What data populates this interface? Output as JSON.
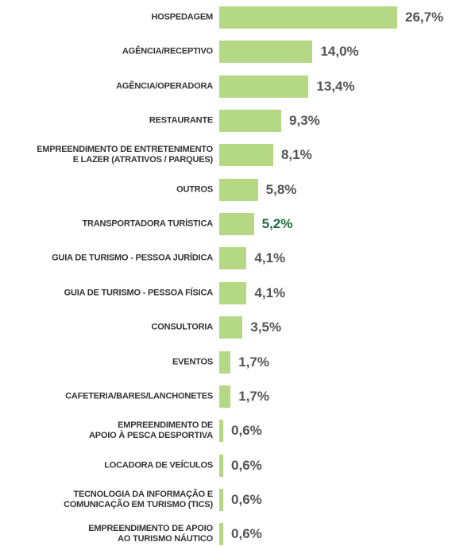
{
  "chart_data": {
    "type": "bar",
    "orientation": "horizontal",
    "categories": [
      "HOSPEDAGEM",
      "AGÊNCIA/RECEPTIVO",
      "AGÊNCIA/OPERADORA",
      "RESTAURANTE",
      "EMPREENDIMENTO DE ENTRETENIMENTO\nE LAZER (ATRATIVOS / PARQUES)",
      "OUTROS",
      "TRANSPORTADORA TURÍSTICA",
      "GUIA DE TURISMO - PESSOA JURÍDICA",
      "GUIA DE TURISMO - PESSOA FÍSICA",
      "CONSULTORIA",
      "EVENTOS",
      "CAFETERIA/BARES/LANCHONETES",
      "EMPREENDIMENTO DE\nAPOIO À PESCA DESPORTIVA",
      "LOCADORA DE VEÍCULOS",
      "TECNOLOGIA DA INFORMAÇÃO E\nCOMUNICAÇÃO EM TURISMO (TICS)",
      "EMPREENDIMENTO DE APOIO\nAO TURISMO NÁUTICO"
    ],
    "values": [
      26.7,
      14.0,
      13.4,
      9.3,
      8.1,
      5.8,
      5.2,
      4.1,
      4.1,
      3.5,
      1.7,
      1.7,
      0.6,
      0.6,
      0.6,
      0.6
    ],
    "value_labels": [
      "26,7%",
      "14,0%",
      "13,4%",
      "9,3%",
      "8,1%",
      "5,8%",
      "5,2%",
      "4,1%",
      "4,1%",
      "3,5%",
      "1,7%",
      "1,7%",
      "0,6%",
      "0,6%",
      "0,6%",
      "0,6%"
    ],
    "color": "#b5d884",
    "value_label_colors": [
      "#555555",
      "#555555",
      "#555555",
      "#555555",
      "#555555",
      "#555555",
      "#1d6b3c",
      "#555555",
      "#555555",
      "#555555",
      "#555555",
      "#555555",
      "#555555",
      "#555555",
      "#555555",
      "#555555"
    ]
  }
}
